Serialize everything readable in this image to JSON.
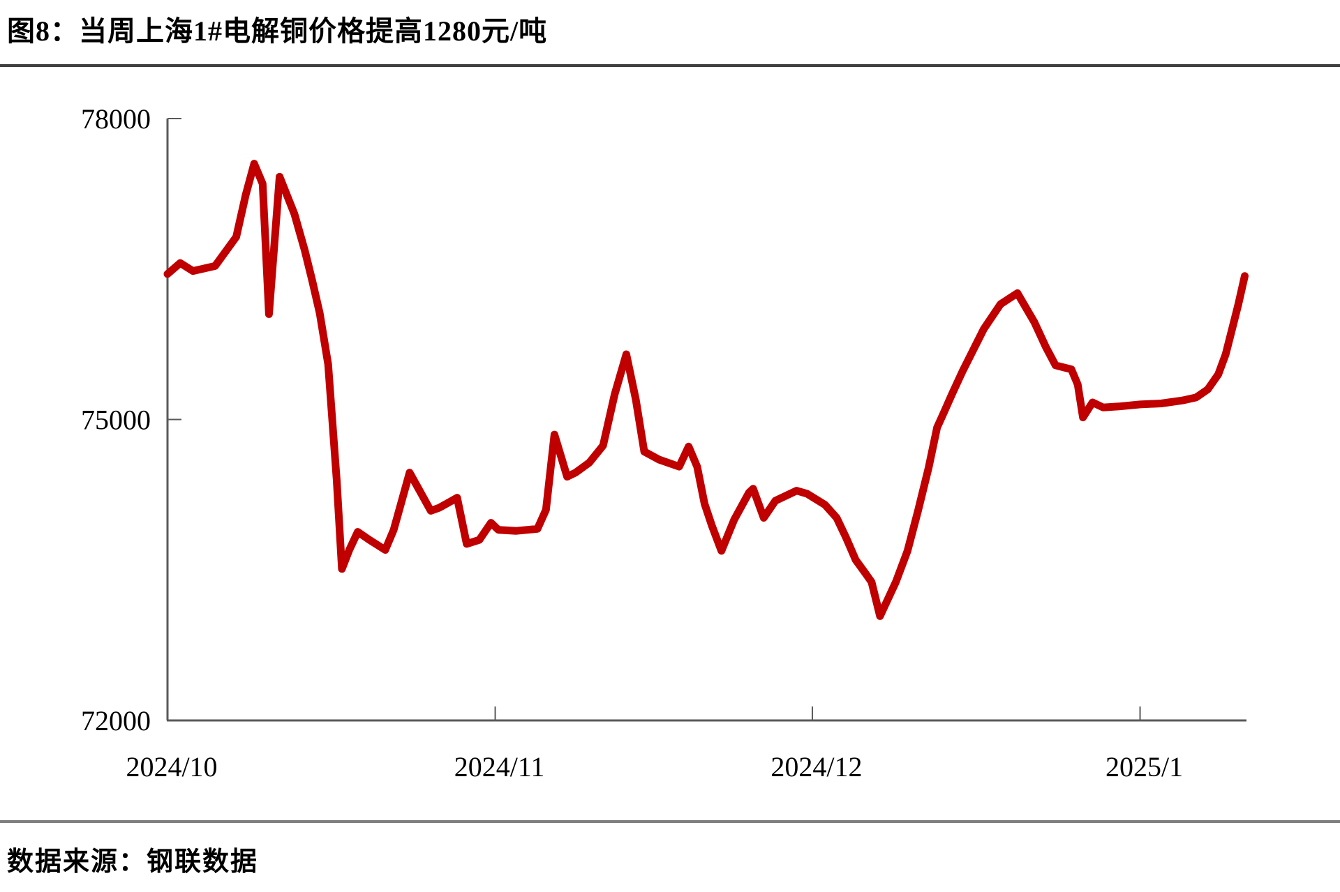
{
  "title": "图8：当周上海1#电解铜价格提高1280元/吨",
  "source": "数据来源：钢联数据",
  "chart_data": {
    "type": "line",
    "title": "图8：当周上海1#电解铜价格提高1280元/吨",
    "series_label": "",
    "x_unit": "days_since_2024-10-01",
    "xlim": [
      0,
      102
    ],
    "ylim": [
      72000,
      78000
    ],
    "grid": false,
    "legend": "none",
    "line_color": "#c00000",
    "axis_color": "#595959",
    "y_ticks": [
      {
        "value": 78000,
        "label": "78000"
      },
      {
        "value": 75000,
        "label": "75000"
      },
      {
        "value": 72000,
        "label": "72000"
      }
    ],
    "x_ticks": [
      {
        "day": 0,
        "label": "2024/10"
      },
      {
        "day": 31,
        "label": "2024/11"
      },
      {
        "day": 61,
        "label": "2024/12"
      },
      {
        "day": 92,
        "label": "2025/1"
      }
    ],
    "points": [
      [
        0,
        76450
      ],
      [
        1.2,
        76560
      ],
      [
        2.4,
        76480
      ],
      [
        4.5,
        76530
      ],
      [
        6.5,
        76820
      ],
      [
        7.4,
        77240
      ],
      [
        8.2,
        77550
      ],
      [
        9.0,
        77350
      ],
      [
        9.6,
        76050
      ],
      [
        10.6,
        77420
      ],
      [
        12.0,
        77050
      ],
      [
        13.0,
        76680
      ],
      [
        13.7,
        76380
      ],
      [
        14.4,
        76060
      ],
      [
        15.2,
        75550
      ],
      [
        16.0,
        74400
      ],
      [
        16.5,
        73510
      ],
      [
        17.2,
        73700
      ],
      [
        18.0,
        73880
      ],
      [
        19.1,
        73800
      ],
      [
        20.6,
        73700
      ],
      [
        21.4,
        73900
      ],
      [
        22.9,
        74470
      ],
      [
        23.8,
        74300
      ],
      [
        24.9,
        74090
      ],
      [
        25.7,
        74120
      ],
      [
        27.4,
        74220
      ],
      [
        28.3,
        73760
      ],
      [
        29.5,
        73800
      ],
      [
        30.6,
        73970
      ],
      [
        31.3,
        73900
      ],
      [
        33.0,
        73890
      ],
      [
        35.0,
        73910
      ],
      [
        35.8,
        74100
      ],
      [
        36.6,
        74850
      ],
      [
        37.8,
        74430
      ],
      [
        38.6,
        74470
      ],
      [
        39.9,
        74570
      ],
      [
        41.2,
        74740
      ],
      [
        42.3,
        75250
      ],
      [
        43.4,
        75650
      ],
      [
        44.3,
        75200
      ],
      [
        45.1,
        74680
      ],
      [
        46.5,
        74600
      ],
      [
        48.4,
        74530
      ],
      [
        49.3,
        74730
      ],
      [
        50.1,
        74530
      ],
      [
        50.8,
        74160
      ],
      [
        51.5,
        73940
      ],
      [
        52.4,
        73690
      ],
      [
        53.6,
        74000
      ],
      [
        55.0,
        74270
      ],
      [
        55.4,
        74310
      ],
      [
        56.4,
        74020
      ],
      [
        57.5,
        74190
      ],
      [
        59.5,
        74290
      ],
      [
        60.5,
        74260
      ],
      [
        62.2,
        74150
      ],
      [
        63.3,
        74020
      ],
      [
        64.2,
        73820
      ],
      [
        65.1,
        73600
      ],
      [
        66.0,
        73470
      ],
      [
        66.6,
        73380
      ],
      [
        67.4,
        73040
      ],
      [
        68.9,
        73380
      ],
      [
        70.0,
        73690
      ],
      [
        71.0,
        74090
      ],
      [
        72.0,
        74520
      ],
      [
        72.8,
        74920
      ],
      [
        73.4,
        75060
      ],
      [
        74.2,
        75250
      ],
      [
        75.2,
        75480
      ],
      [
        77.2,
        75900
      ],
      [
        78.8,
        76150
      ],
      [
        80.4,
        76260
      ],
      [
        82.0,
        75970
      ],
      [
        83.1,
        75720
      ],
      [
        84.0,
        75540
      ],
      [
        85.5,
        75500
      ],
      [
        86.1,
        75350
      ],
      [
        86.6,
        75020
      ],
      [
        87.5,
        75170
      ],
      [
        88.5,
        75120
      ],
      [
        90.0,
        75130
      ],
      [
        92.0,
        75150
      ],
      [
        94.0,
        75160
      ],
      [
        96.0,
        75190
      ],
      [
        97.3,
        75220
      ],
      [
        98.4,
        75300
      ],
      [
        99.4,
        75450
      ],
      [
        100.1,
        75650
      ],
      [
        100.7,
        75900
      ],
      [
        101.3,
        76150
      ],
      [
        101.9,
        76430
      ]
    ]
  }
}
